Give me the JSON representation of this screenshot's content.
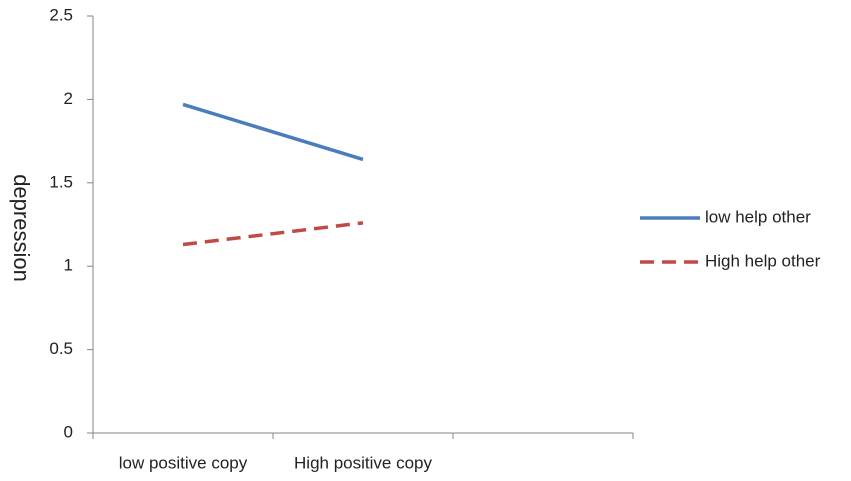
{
  "chart_data": {
    "type": "line",
    "y_label": "depression",
    "categories": [
      "low positive copy",
      "High positive copy",
      null
    ],
    "series": [
      {
        "name": "low help other",
        "color": "#4a7ebb",
        "dash": false,
        "values": [
          1.97,
          1.64,
          null
        ]
      },
      {
        "name": "High help other",
        "color": "#be4b48",
        "dash": true,
        "values": [
          1.13,
          1.26,
          null
        ]
      }
    ],
    "ylim": [
      0,
      2.5
    ],
    "yticks": [
      0,
      0.5,
      1,
      1.5,
      2,
      2.5
    ],
    "grid": false,
    "legend": "right"
  }
}
